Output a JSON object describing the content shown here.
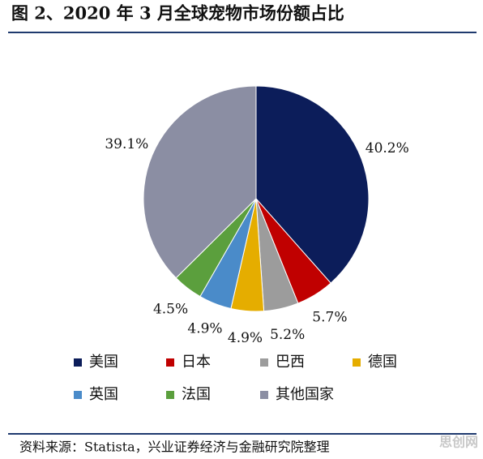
{
  "chart_data": {
    "type": "pie",
    "title": "图 2、2020 年 3 月全球宠物市场份额占比",
    "categories": [
      "美国",
      "日本",
      "巴西",
      "德国",
      "英国",
      "法国",
      "其他国家"
    ],
    "values": [
      40.2,
      5.7,
      5.2,
      4.9,
      4.9,
      4.5,
      39.1
    ],
    "value_labels": [
      "40.2%",
      "5.7%",
      "5.2%",
      "4.9%",
      "4.9%",
      "4.5%",
      "39.1%"
    ],
    "colors": [
      "#0c1d5a",
      "#c00000",
      "#9c9c9c",
      "#e5ad00",
      "#4a8bc9",
      "#5b9f3d",
      "#8b8ea3"
    ],
    "source": "资料来源：Statista，兴业证券经济与金融研究院整理",
    "watermark": "思创网"
  }
}
